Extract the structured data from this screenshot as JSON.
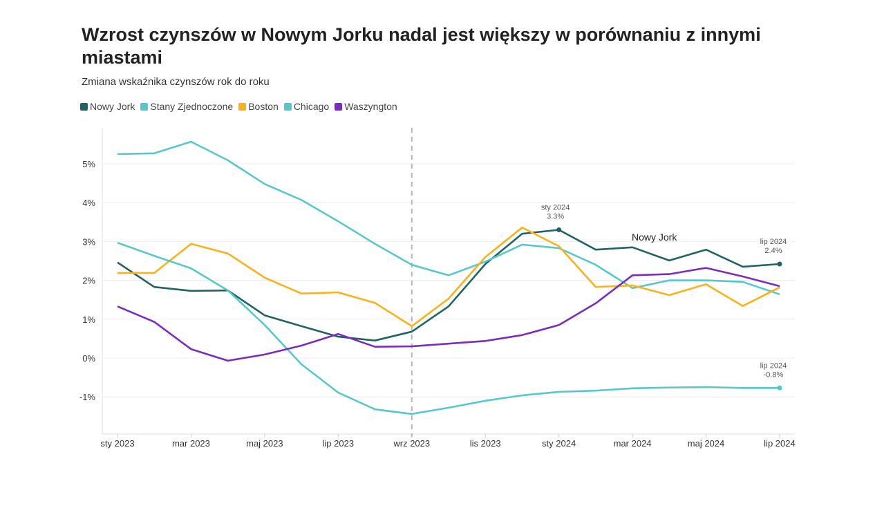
{
  "chart_data": {
    "type": "line",
    "title": "Wzrost czynszów w Nowym Jorku nadal jest większy w porównaniu z innymi miastami",
    "subtitle": "Zmiana wskaźnika czynszów rok do roku",
    "xlabel": "",
    "ylabel": "",
    "x": [
      "sty 2023",
      "lut 2023",
      "mar 2023",
      "kwi 2023",
      "maj 2023",
      "cze 2023",
      "lip 2023",
      "sie 2023",
      "wrz 2023",
      "paź 2023",
      "lis 2023",
      "gru 2023",
      "sty 2024",
      "lut 2024",
      "mar 2024",
      "kwi 2024",
      "maj 2024",
      "cze 2024",
      "lip 2024"
    ],
    "x_tick_labels": [
      "sty 2023",
      "mar 2023",
      "maj 2023",
      "lip 2023",
      "wrz 2023",
      "lis 2023",
      "sty 2024",
      "mar 2024",
      "maj 2024",
      "lip 2024"
    ],
    "y_tick_labels": [
      "-1%",
      "0%",
      "1%",
      "2%",
      "3%",
      "4%",
      "5%"
    ],
    "y_ticks": [
      -1,
      0,
      1,
      2,
      3,
      4,
      5
    ],
    "ylim": [
      -1.9,
      6.1
    ],
    "grid": true,
    "legend_placement": "top-left",
    "reference_line_at": "wrz 2023",
    "series": [
      {
        "name": "Nowy Jork",
        "color": "#1f6364",
        "values": [
          2.46,
          1.83,
          1.73,
          1.74,
          1.1,
          0.82,
          0.55,
          0.45,
          0.68,
          1.33,
          2.42,
          3.2,
          3.3,
          2.79,
          2.85,
          2.51,
          2.79,
          2.35,
          2.42
        ]
      },
      {
        "name": "Stany Zjednoczone",
        "color": "#55c8cf",
        "values": [
          5.25,
          5.27,
          5.57,
          5.09,
          4.48,
          4.07,
          3.52,
          2.94,
          2.4,
          2.13,
          2.48,
          2.92,
          2.83,
          2.4,
          1.8,
          2.0,
          2.0,
          1.96,
          1.64
        ]
      },
      {
        "name": "Boston",
        "color": "#fbb117",
        "values": [
          2.19,
          2.19,
          2.94,
          2.69,
          2.07,
          1.66,
          1.69,
          1.42,
          0.82,
          1.53,
          2.6,
          3.36,
          2.88,
          1.83,
          1.87,
          1.62,
          1.9,
          1.34,
          1.82
        ]
      },
      {
        "name": "Chicago",
        "color": "#55c8cf",
        "values": [
          2.97,
          2.63,
          2.31,
          1.74,
          0.85,
          -0.16,
          -0.89,
          -1.32,
          -1.44,
          -1.28,
          -1.1,
          -0.96,
          -0.87,
          -0.84,
          -0.78,
          -0.76,
          -0.75,
          -0.77,
          -0.77
        ]
      },
      {
        "name": "Waszyngton",
        "color": "#7b2cbf",
        "values": [
          1.33,
          0.93,
          0.23,
          -0.07,
          0.09,
          0.32,
          0.62,
          0.29,
          0.3,
          0.37,
          0.44,
          0.59,
          0.85,
          1.41,
          2.13,
          2.16,
          2.32,
          2.1,
          1.85
        ]
      }
    ],
    "annotations": [
      {
        "series": "Nowy Jork",
        "x": "sty 2024",
        "line1": "sty 2024",
        "line2": "3.3%"
      },
      {
        "series": "Nowy Jork",
        "x": "lip 2024",
        "line1": "lip 2024",
        "line2": "2.4%"
      },
      {
        "series": "Chicago",
        "x": "lip 2024",
        "line1": "lip 2024",
        "line2": "-0.8%"
      }
    ],
    "series_label": "Nowy Jork"
  }
}
